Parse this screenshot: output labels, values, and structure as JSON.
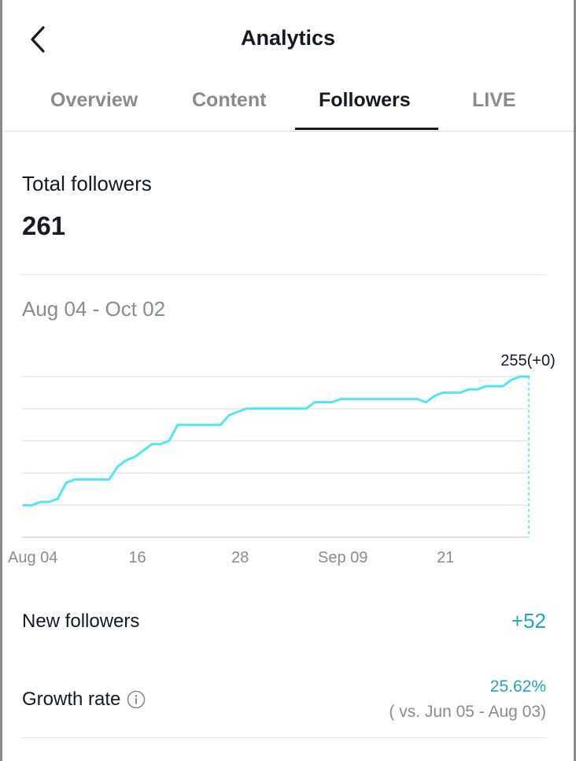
{
  "header": {
    "title": "Analytics",
    "back_icon": "chevron-left-icon"
  },
  "tabs": [
    {
      "label": "Overview",
      "active": false
    },
    {
      "label": "Content",
      "active": false
    },
    {
      "label": "Followers",
      "active": true
    },
    {
      "label": "LIVE",
      "active": false
    }
  ],
  "total_followers": {
    "label": "Total followers",
    "value": "261"
  },
  "date_range": "Aug 04 - Oct 02",
  "chart_data": {
    "type": "line",
    "x_tick_labels": [
      "Aug 04",
      "16",
      "28",
      "Sep 09",
      "21"
    ],
    "x_tick_days": [
      0,
      12,
      24,
      36,
      48
    ],
    "x_range_days": [
      0,
      59
    ],
    "ylim": [
      205,
      255
    ],
    "grid": true,
    "line_color": "#4de8f4",
    "series": [
      {
        "days": [
          0,
          1,
          2,
          3,
          4,
          5,
          6,
          7,
          8,
          9,
          10,
          11,
          12,
          13,
          14,
          15,
          16,
          17,
          18,
          19,
          20,
          21,
          22,
          23,
          24,
          25,
          26,
          27,
          28,
          29,
          30,
          31,
          32,
          33,
          34,
          35,
          36,
          37,
          38,
          39,
          40,
          41,
          42,
          43,
          44,
          45,
          46,
          47,
          48,
          49,
          50,
          51,
          52,
          53,
          54,
          55,
          56,
          57,
          58,
          59
        ],
        "values": [
          215,
          215,
          216,
          216,
          217,
          222,
          223,
          223,
          223,
          223,
          223,
          227,
          229,
          230,
          232,
          234,
          234,
          235,
          240,
          240,
          240,
          240,
          240,
          240,
          243,
          244,
          245,
          245,
          245,
          245,
          245,
          245,
          245,
          245,
          247,
          247,
          247,
          248,
          248,
          248,
          248,
          248,
          248,
          248,
          248,
          248,
          248,
          247,
          249,
          250,
          250,
          250,
          251,
          251,
          252,
          252,
          252,
          254,
          255,
          255
        ]
      }
    ],
    "highlight": {
      "day": 59,
      "label": "255(+0)"
    }
  },
  "new_followers": {
    "label": "New followers",
    "value": "+52"
  },
  "growth_rate": {
    "label": "Growth rate",
    "value": "25.62%",
    "comparison": "( vs. Jun 05 - Aug 03)",
    "info_icon": "info-icon"
  }
}
